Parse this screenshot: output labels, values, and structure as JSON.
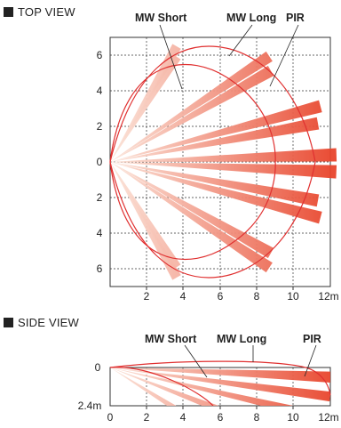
{
  "top_view": {
    "title": "TOP VIEW",
    "callouts": {
      "mw_short": "MW Short",
      "mw_long": "MW Long",
      "pir": "PIR"
    },
    "y_ticks": [
      "6",
      "4",
      "2",
      "0",
      "2",
      "4",
      "6"
    ],
    "x_ticks": [
      "2",
      "4",
      "6",
      "8",
      "10",
      "12m"
    ]
  },
  "side_view": {
    "title": "SIDE VIEW",
    "callouts": {
      "mw_short": "MW Short",
      "mw_long": "MW Long",
      "pir": "PIR"
    },
    "y_ticks": [
      "0",
      "2.4m"
    ],
    "x_ticks": [
      "0",
      "2",
      "4",
      "6",
      "8",
      "10",
      "12m"
    ]
  },
  "colors": {
    "outline": "#e03030",
    "beam_light": "#f7cdb8",
    "beam_dark": "#e8452c",
    "grid": "#333333"
  }
}
